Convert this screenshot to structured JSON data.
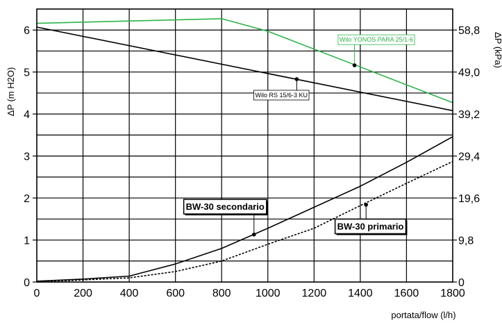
{
  "chart_data": {
    "type": "line",
    "x": [
      0,
      200,
      400,
      600,
      800,
      1000,
      1200,
      1400,
      1600,
      1800
    ],
    "xlim": [
      0,
      1800
    ],
    "ylim": [
      0,
      6.5
    ],
    "xticks": [
      "0",
      "200",
      "400",
      "600",
      "800",
      "1000",
      "1200",
      "1400",
      "1600",
      "1800"
    ],
    "yticks_left": [
      "0",
      "1",
      "2",
      "3",
      "4",
      "5",
      "6"
    ],
    "yticks_right": [
      "0",
      "9,8",
      "19,6",
      "29,4",
      "39,2",
      "49,0",
      "58,8"
    ],
    "ylabel_left": "ΔP (m H2O)",
    "ylabel_right": "ΔP (kPa)",
    "xlabel": "portata/flow (l/h)",
    "grid": true,
    "series": [
      {
        "name": "Wilo YONOS PARA 25/1-6",
        "color": "#2db34a",
        "dashed": false,
        "x": [
          0,
          800,
          1000,
          1800
        ],
        "y": [
          6.16,
          6.27,
          5.97,
          4.27
        ]
      },
      {
        "name": "Wilo RS 15/6-3 KU",
        "color": "#000000",
        "dashed": false,
        "x": [
          0,
          1800
        ],
        "y": [
          6.07,
          4.08
        ]
      },
      {
        "name": "BW-30 secondario",
        "color": "#000000",
        "dashed": false,
        "x": [
          0,
          200,
          400,
          600,
          800,
          1000,
          1200,
          1400,
          1600,
          1800
        ],
        "y": [
          0.02,
          0.07,
          0.14,
          0.43,
          0.8,
          1.28,
          1.78,
          2.28,
          2.85,
          3.46
        ]
      },
      {
        "name": "BW-30 primario",
        "color": "#000000",
        "dashed": true,
        "x": [
          0,
          200,
          400,
          600,
          800,
          1000,
          1200,
          1400,
          1600,
          1800
        ],
        "y": [
          0.0,
          0.05,
          0.1,
          0.25,
          0.5,
          0.9,
          1.28,
          1.82,
          2.35,
          2.87
        ]
      }
    ],
    "annotations": [
      {
        "text": "Wilo YONOS PARA 25/1-6",
        "series": 0,
        "point_x": 1375,
        "point_y": 5.16,
        "box_x": 1310,
        "box_y": 5.72,
        "style": "green-small"
      },
      {
        "text": "Wilo RS 15/6-3 KU",
        "series": 1,
        "point_x": 1125,
        "point_y": 4.83,
        "box_x": 945,
        "box_y": 4.4,
        "style": "black-small"
      },
      {
        "text": "BW-30 secondario",
        "series": 2,
        "point_x": 940,
        "point_y": 1.13,
        "box_x": 645,
        "box_y": 1.72,
        "style": "bold-box"
      },
      {
        "text": "BW-30 primario",
        "series": 3,
        "point_x": 1425,
        "point_y": 1.84,
        "box_x": 1300,
        "box_y": 1.25,
        "style": "bold-box"
      }
    ]
  }
}
